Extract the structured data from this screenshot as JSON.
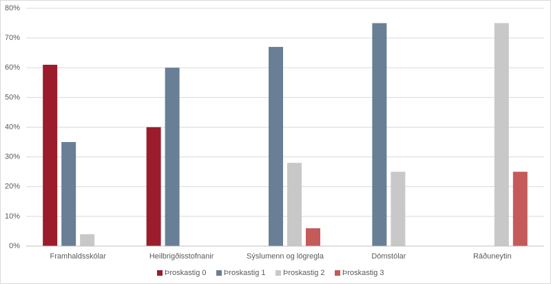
{
  "chart_data": {
    "type": "bar",
    "categories": [
      "Framhaldsskólar",
      "Heilbrigðisstofnanir",
      "Sýslumenn og lögregla",
      "Dómstólar",
      "Ráðuneytin"
    ],
    "series": [
      {
        "name": "Þroskastig 0",
        "color": "#9b1c2b",
        "values": [
          61,
          40,
          0,
          0,
          0
        ]
      },
      {
        "name": "Þroskastig 1",
        "color": "#687f96",
        "values": [
          35,
          60,
          67,
          75,
          0
        ]
      },
      {
        "name": "Þroskastig 2",
        "color": "#c8c8c8",
        "values": [
          4,
          0,
          28,
          25,
          75
        ]
      },
      {
        "name": "Þroskastig 3",
        "color": "#c55a5a",
        "values": [
          0,
          0,
          6,
          0,
          25
        ]
      }
    ],
    "ylim": [
      0,
      80
    ],
    "yticks": [
      {
        "value": 0,
        "label": "0%"
      },
      {
        "value": 10,
        "label": "10%"
      },
      {
        "value": 20,
        "label": "20%"
      },
      {
        "value": 30,
        "label": "30%"
      },
      {
        "value": 40,
        "label": "40%"
      },
      {
        "value": 50,
        "label": "50%"
      },
      {
        "value": 60,
        "label": "60%"
      },
      {
        "value": 70,
        "label": "70%"
      },
      {
        "value": 80,
        "label": "80%"
      }
    ],
    "grid": true,
    "legend": "bottom"
  }
}
